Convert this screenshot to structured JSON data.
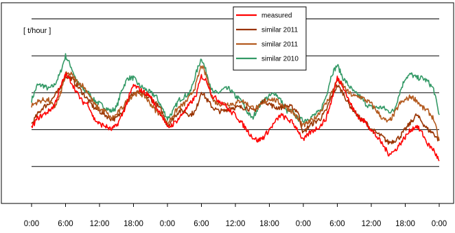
{
  "chart_data": {
    "type": "line",
    "ylabel": "[ t/hour ]",
    "x_tick_labels": [
      "0:00",
      "6:00",
      "12:00",
      "18:00",
      "0:00",
      "6:00",
      "12:00",
      "18:00",
      "0:00",
      "6:00",
      "12:00",
      "18:00",
      "0:00"
    ],
    "x_unit": "hours",
    "xlim": [
      0,
      72
    ],
    "ylim": [
      0,
      5
    ],
    "y_gridlines": [
      1,
      2,
      3,
      4,
      5
    ],
    "y_tick_labels_shown": false,
    "legend_position": "top-center",
    "grid": true,
    "series": [
      {
        "name": "measured",
        "color": "#ff0000",
        "points": [
          [
            0,
            2.05
          ],
          [
            1,
            2.3
          ],
          [
            2,
            2.4
          ],
          [
            3,
            2.5
          ],
          [
            4,
            2.65
          ],
          [
            5,
            3.1
          ],
          [
            6,
            3.5
          ],
          [
            7,
            3.3
          ],
          [
            8,
            3.0
          ],
          [
            9,
            2.75
          ],
          [
            10,
            2.7
          ],
          [
            11,
            2.3
          ],
          [
            12,
            2.15
          ],
          [
            13,
            2.1
          ],
          [
            14,
            2.0
          ],
          [
            15,
            2.1
          ],
          [
            16,
            2.4
          ],
          [
            17,
            2.8
          ],
          [
            18,
            3.2
          ],
          [
            19,
            3.1
          ],
          [
            20,
            3.0
          ],
          [
            21,
            2.9
          ],
          [
            22,
            2.6
          ],
          [
            23,
            2.4
          ],
          [
            24,
            2.05
          ],
          [
            25,
            2.15
          ],
          [
            26,
            2.3
          ],
          [
            27,
            2.5
          ],
          [
            28,
            2.7
          ],
          [
            29,
            2.9
          ],
          [
            30,
            3.45
          ],
          [
            31,
            3.3
          ],
          [
            32,
            2.9
          ],
          [
            33,
            2.8
          ],
          [
            34,
            2.7
          ],
          [
            35,
            2.5
          ],
          [
            36,
            2.4
          ],
          [
            37,
            2.2
          ],
          [
            38,
            2.0
          ],
          [
            39,
            1.8
          ],
          [
            40,
            1.7
          ],
          [
            41,
            1.8
          ],
          [
            42,
            2.0
          ],
          [
            43,
            2.2
          ],
          [
            44,
            2.4
          ],
          [
            45,
            2.3
          ],
          [
            46,
            2.2
          ],
          [
            47,
            2.0
          ],
          [
            48,
            1.7
          ],
          [
            49,
            1.9
          ],
          [
            50,
            2.0
          ],
          [
            51,
            2.1
          ],
          [
            52,
            2.3
          ],
          [
            53,
            2.8
          ],
          [
            54,
            3.4
          ],
          [
            55,
            3.2
          ],
          [
            56,
            2.8
          ],
          [
            57,
            2.5
          ],
          [
            58,
            2.3
          ],
          [
            59,
            2.2
          ],
          [
            60,
            2.0
          ],
          [
            61,
            1.8
          ],
          [
            62,
            1.6
          ],
          [
            63,
            1.35
          ],
          [
            64,
            1.4
          ],
          [
            65,
            1.6
          ],
          [
            66,
            1.8
          ],
          [
            67,
            2.0
          ],
          [
            68,
            2.1
          ],
          [
            69,
            1.9
          ],
          [
            70,
            1.6
          ],
          [
            71,
            1.45
          ],
          [
            72,
            1.15
          ]
        ]
      },
      {
        "name": "similar 2011",
        "color": "#993300",
        "points": [
          [
            0,
            2.15
          ],
          [
            1,
            2.4
          ],
          [
            2,
            2.6
          ],
          [
            3,
            2.7
          ],
          [
            4,
            2.9
          ],
          [
            5,
            3.1
          ],
          [
            6,
            3.45
          ],
          [
            7,
            3.4
          ],
          [
            8,
            3.2
          ],
          [
            9,
            3.0
          ],
          [
            10,
            2.8
          ],
          [
            11,
            2.6
          ],
          [
            12,
            2.5
          ],
          [
            13,
            2.4
          ],
          [
            14,
            2.3
          ],
          [
            15,
            2.3
          ],
          [
            16,
            2.5
          ],
          [
            17,
            2.8
          ],
          [
            18,
            3.0
          ],
          [
            19,
            3.0
          ],
          [
            20,
            2.9
          ],
          [
            21,
            2.85
          ],
          [
            22,
            2.7
          ],
          [
            23,
            2.5
          ],
          [
            24,
            2.1
          ],
          [
            25,
            2.3
          ],
          [
            26,
            2.5
          ],
          [
            27,
            2.5
          ],
          [
            28,
            2.4
          ],
          [
            29,
            2.5
          ],
          [
            30,
            3.05
          ],
          [
            31,
            2.8
          ],
          [
            32,
            2.6
          ],
          [
            33,
            2.5
          ],
          [
            34,
            2.5
          ],
          [
            35,
            2.6
          ],
          [
            36,
            2.6
          ],
          [
            37,
            2.6
          ],
          [
            38,
            2.6
          ],
          [
            39,
            2.5
          ],
          [
            40,
            2.6
          ],
          [
            41,
            2.8
          ],
          [
            42,
            2.7
          ],
          [
            43,
            2.6
          ],
          [
            44,
            2.6
          ],
          [
            45,
            2.65
          ],
          [
            46,
            2.6
          ],
          [
            47,
            2.5
          ],
          [
            48,
            1.9
          ],
          [
            49,
            2.1
          ],
          [
            50,
            2.2
          ],
          [
            51,
            2.3
          ],
          [
            52,
            2.5
          ],
          [
            53,
            2.9
          ],
          [
            54,
            3.2
          ],
          [
            55,
            3.0
          ],
          [
            56,
            2.7
          ],
          [
            57,
            2.5
          ],
          [
            58,
            2.3
          ],
          [
            59,
            2.2
          ],
          [
            60,
            2.0
          ],
          [
            61,
            1.9
          ],
          [
            62,
            1.8
          ],
          [
            63,
            1.65
          ],
          [
            64,
            1.7
          ],
          [
            65,
            1.8
          ],
          [
            66,
            2.0
          ],
          [
            67,
            2.2
          ],
          [
            68,
            2.4
          ],
          [
            69,
            2.2
          ],
          [
            70,
            2.0
          ],
          [
            71,
            1.9
          ],
          [
            72,
            1.7
          ]
        ]
      },
      {
        "name": "similar 2011",
        "color": "#b35a1f",
        "points": [
          [
            0,
            2.65
          ],
          [
            1,
            2.75
          ],
          [
            2,
            2.8
          ],
          [
            3,
            2.8
          ],
          [
            4,
            2.6
          ],
          [
            5,
            2.9
          ],
          [
            6,
            3.5
          ],
          [
            7,
            3.5
          ],
          [
            8,
            3.3
          ],
          [
            9,
            3.2
          ],
          [
            10,
            3.0
          ],
          [
            11,
            2.7
          ],
          [
            12,
            2.55
          ],
          [
            13,
            2.5
          ],
          [
            14,
            2.3
          ],
          [
            15,
            2.4
          ],
          [
            16,
            2.6
          ],
          [
            17,
            2.8
          ],
          [
            18,
            2.95
          ],
          [
            19,
            3.0
          ],
          [
            20,
            2.9
          ],
          [
            21,
            2.7
          ],
          [
            22,
            2.5
          ],
          [
            23,
            2.4
          ],
          [
            24,
            2.15
          ],
          [
            25,
            2.4
          ],
          [
            26,
            2.6
          ],
          [
            27,
            2.7
          ],
          [
            28,
            2.9
          ],
          [
            29,
            3.2
          ],
          [
            30,
            3.75
          ],
          [
            31,
            3.4
          ],
          [
            32,
            2.8
          ],
          [
            33,
            2.7
          ],
          [
            34,
            2.7
          ],
          [
            35,
            2.7
          ],
          [
            36,
            2.7
          ],
          [
            37,
            2.8
          ],
          [
            38,
            2.7
          ],
          [
            39,
            2.6
          ],
          [
            40,
            2.6
          ],
          [
            41,
            2.7
          ],
          [
            42,
            2.85
          ],
          [
            43,
            2.8
          ],
          [
            44,
            2.7
          ],
          [
            45,
            2.6
          ],
          [
            46,
            2.5
          ],
          [
            47,
            2.3
          ],
          [
            48,
            2.1
          ],
          [
            49,
            2.2
          ],
          [
            50,
            2.3
          ],
          [
            51,
            2.5
          ],
          [
            52,
            2.7
          ],
          [
            53,
            3.0
          ],
          [
            54,
            3.35
          ],
          [
            55,
            3.2
          ],
          [
            56,
            3.0
          ],
          [
            57,
            2.9
          ],
          [
            58,
            2.9
          ],
          [
            59,
            2.8
          ],
          [
            60,
            2.7
          ],
          [
            61,
            2.5
          ],
          [
            62,
            2.3
          ],
          [
            63,
            2.2
          ],
          [
            64,
            2.4
          ],
          [
            65,
            2.7
          ],
          [
            66,
            2.8
          ],
          [
            67,
            2.9
          ],
          [
            68,
            2.8
          ],
          [
            69,
            2.6
          ],
          [
            70,
            2.5
          ],
          [
            71,
            2.3
          ],
          [
            72,
            1.7
          ]
        ]
      },
      {
        "name": "similar 2010",
        "color": "#339966",
        "points": [
          [
            0,
            2.8
          ],
          [
            1,
            3.2
          ],
          [
            2,
            3.2
          ],
          [
            3,
            3.1
          ],
          [
            4,
            3.2
          ],
          [
            5,
            3.5
          ],
          [
            6,
            4.0
          ],
          [
            7,
            3.7
          ],
          [
            8,
            3.3
          ],
          [
            9,
            3.1
          ],
          [
            10,
            3.0
          ],
          [
            11,
            2.8
          ],
          [
            12,
            2.7
          ],
          [
            13,
            2.6
          ],
          [
            14,
            2.5
          ],
          [
            15,
            2.6
          ],
          [
            16,
            3.1
          ],
          [
            17,
            3.4
          ],
          [
            18,
            3.4
          ],
          [
            19,
            3.2
          ],
          [
            20,
            3.1
          ],
          [
            21,
            3.0
          ],
          [
            22,
            2.9
          ],
          [
            23,
            2.6
          ],
          [
            24,
            2.3
          ],
          [
            25,
            2.5
          ],
          [
            26,
            2.8
          ],
          [
            27,
            2.9
          ],
          [
            28,
            3.0
          ],
          [
            29,
            3.5
          ],
          [
            30,
            3.95
          ],
          [
            31,
            3.5
          ],
          [
            32,
            3.0
          ],
          [
            33,
            3.0
          ],
          [
            34,
            3.1
          ],
          [
            35,
            3.1
          ],
          [
            36,
            2.9
          ],
          [
            37,
            2.8
          ],
          [
            38,
            2.5
          ],
          [
            39,
            2.3
          ],
          [
            40,
            2.6
          ],
          [
            41,
            2.8
          ],
          [
            42,
            2.9
          ],
          [
            43,
            3.0
          ],
          [
            44,
            2.8
          ],
          [
            45,
            2.5
          ],
          [
            46,
            2.5
          ],
          [
            47,
            2.3
          ],
          [
            48,
            2.25
          ],
          [
            49,
            2.3
          ],
          [
            50,
            2.4
          ],
          [
            51,
            2.5
          ],
          [
            52,
            2.9
          ],
          [
            53,
            3.5
          ],
          [
            54,
            3.75
          ],
          [
            55,
            3.4
          ],
          [
            56,
            3.2
          ],
          [
            57,
            3.0
          ],
          [
            58,
            2.9
          ],
          [
            59,
            2.7
          ],
          [
            60,
            2.6
          ],
          [
            61,
            2.6
          ],
          [
            62,
            2.6
          ],
          [
            63,
            2.5
          ],
          [
            64,
            2.5
          ],
          [
            65,
            3.0
          ],
          [
            66,
            3.4
          ],
          [
            67,
            3.5
          ],
          [
            68,
            3.4
          ],
          [
            69,
            3.4
          ],
          [
            70,
            3.3
          ],
          [
            71,
            3.1
          ],
          [
            72,
            2.4
          ]
        ]
      }
    ]
  }
}
